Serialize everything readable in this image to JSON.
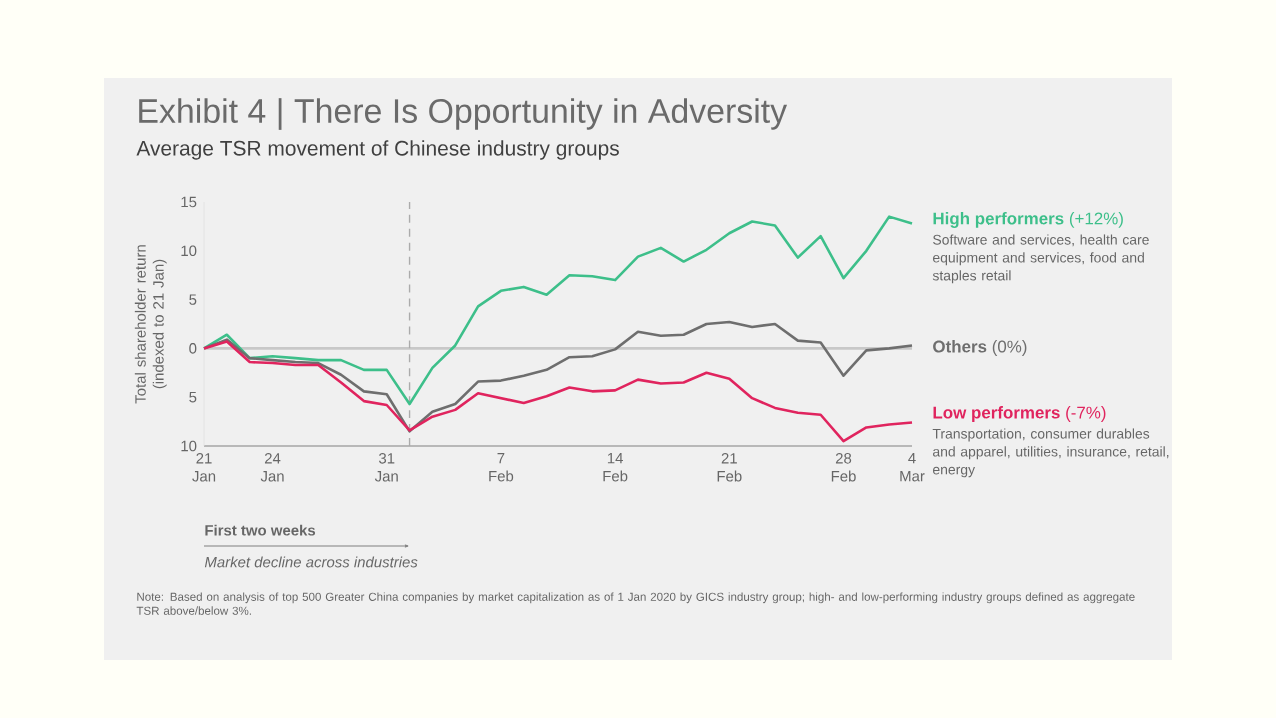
{
  "chart_data": {
    "type": "line",
    "title": "Exhibit 4 | There Is Opportunity in Adversity",
    "subtitle": "Average TSR movement of Chinese industry groups",
    "ylabel": "Total shareholder return (indexed to 21 Jan)",
    "categories": [
      "21 Jan",
      null,
      null,
      "24 Jan",
      null,
      null,
      null,
      null,
      "31 Jan",
      null,
      null,
      null,
      null,
      "7 Feb",
      null,
      null,
      null,
      null,
      "14 Feb",
      null,
      null,
      null,
      null,
      "21 Feb",
      null,
      null,
      null,
      null,
      "28 Feb",
      null,
      null,
      "4 Mar"
    ],
    "ylim": [
      -10,
      15
    ],
    "yticks": [
      {
        "value": -10,
        "label": "10"
      },
      {
        "value": -5,
        "label": "5"
      },
      0,
      5,
      10,
      15
    ],
    "series": [
      {
        "name": "**High performers** (+12%)",
        "color": "#3dbf8a",
        "values": [
          0,
          1.4,
          -1.0,
          -0.8,
          -1.0,
          -1.2,
          -1.2,
          -2.2,
          -2.2,
          -5.7,
          -2.0,
          0.3,
          4.3,
          5.9,
          6.3,
          5.5,
          7.5,
          7.4,
          7.0,
          9.4,
          10.3,
          8.9,
          10.1,
          11.8,
          13.0,
          12.6,
          9.3,
          11.5,
          7.2,
          10.0,
          13.5,
          12.8
        ]
      },
      {
        "name": "**Others** (0%)",
        "color": "#6e6e6e",
        "values": [
          0,
          0.9,
          -1.0,
          -1.2,
          -1.4,
          -1.5,
          -2.7,
          -4.4,
          -4.7,
          -8.5,
          -6.5,
          -5.7,
          -3.4,
          -3.3,
          -2.8,
          -2.2,
          -0.9,
          -0.8,
          -0.1,
          1.7,
          1.3,
          1.4,
          2.5,
          2.7,
          2.2,
          2.5,
          0.8,
          0.6,
          -2.8,
          -0.2,
          0,
          0.3
        ]
      },
      {
        "name": "**Low performers** (-7%)",
        "color": "#e0245e",
        "values": [
          0,
          0.7,
          -1.4,
          -1.5,
          -1.7,
          -1.7,
          -3.5,
          -5.4,
          -5.8,
          -8.4,
          -7.0,
          -6.3,
          -4.6,
          -5.1,
          -5.6,
          -4.9,
          -4.0,
          -4.4,
          -4.3,
          -3.2,
          -3.6,
          -3.5,
          -2.5,
          -3.1,
          -5.1,
          -6.1,
          -6.6,
          -6.8,
          -9.5,
          -8.1,
          -7.8,
          -7.6
        ]
      }
    ],
    "ref_lines": [
      {
        "axis": "y",
        "value": 0,
        "color": "#c8c8c8"
      }
    ],
    "annotations": [
      "Software and services, health care equipment and services, food and staples retail",
      "Transportation, consumer durables and apparel, utilities, insurance, retail, energy",
      "First two weeks",
      "Market decline across industries",
      "Note: Based on analysis of top 500 Greater China companies by market capitalization as of 1 Jan 2020 by GICS industry group; high- and low-performing industry groups defined as aggregate TSR above/below 3%."
    ],
    "marker": "none"
  }
}
